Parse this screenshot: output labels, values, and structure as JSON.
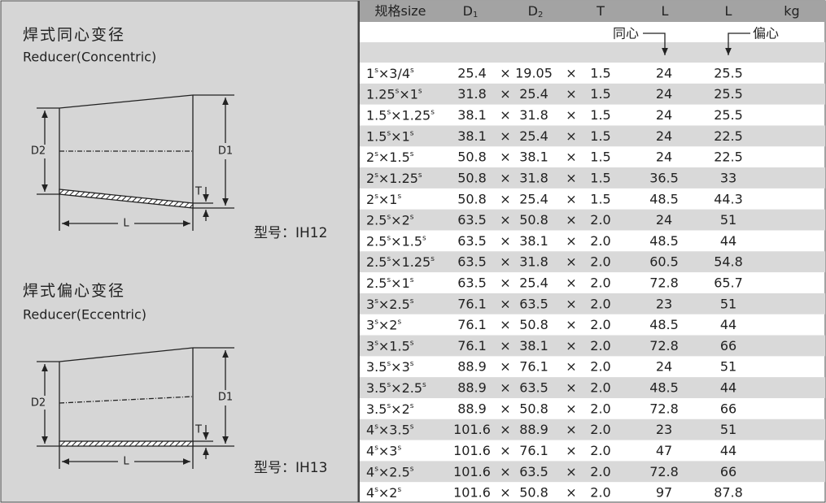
{
  "left": {
    "concentric": {
      "title_cn": "焊式同心变径",
      "title_en": "Reducer(Concentric)",
      "d2": "D2",
      "d1": "D1",
      "t": "T",
      "l": "L",
      "model": "型号：IH12"
    },
    "eccentric": {
      "title_cn": "焊式偏心变径",
      "title_en": "Reducer(Eccentric)",
      "d2": "D2",
      "d1": "D1",
      "t": "T",
      "l": "L",
      "model": "型号：IH13"
    }
  },
  "table": {
    "header": [
      {
        "text": "规格size"
      },
      {
        "text": "D",
        "sub": "1"
      },
      {
        "text": "D",
        "sub": "2"
      },
      {
        "text": "T"
      },
      {
        "text": "L"
      },
      {
        "text": "L"
      },
      {
        "text": "kg"
      }
    ],
    "subheader": {
      "concentric": "同心",
      "eccentric": "偏心"
    },
    "rows": [
      [
        "1s×3/4s",
        "25.4",
        "×",
        "19.05",
        "×",
        "1.5",
        "24",
        "25.5"
      ],
      [
        "1.25s×1s",
        "31.8",
        "×",
        "25.4",
        "×",
        "1.5",
        "24",
        "25.5"
      ],
      [
        "1.5s×1.25s",
        "38.1",
        "×",
        "31.8",
        "×",
        "1.5",
        "24",
        "25.5"
      ],
      [
        "1.5s×1s",
        "38.1",
        "×",
        "25.4",
        "×",
        "1.5",
        "24",
        "22.5"
      ],
      [
        "2s×1.5s",
        "50.8",
        "×",
        "38.1",
        "×",
        "1.5",
        "24",
        "22.5"
      ],
      [
        "2s×1.25s",
        "50.8",
        "×",
        "31.8",
        "×",
        "1.5",
        "36.5",
        "33"
      ],
      [
        "2s×1s",
        "50.8",
        "×",
        "25.4",
        "×",
        "1.5",
        "48.5",
        "44.3"
      ],
      [
        "2.5s×2s",
        "63.5",
        "×",
        "50.8",
        "×",
        "2.0",
        "24",
        "51"
      ],
      [
        "2.5s×1.5s",
        "63.5",
        "×",
        "38.1",
        "×",
        "2.0",
        "48.5",
        "44"
      ],
      [
        "2.5s×1.25s",
        "63.5",
        "×",
        "31.8",
        "×",
        "2.0",
        "60.5",
        "54.8"
      ],
      [
        "2.5s×1s",
        "63.5",
        "×",
        "25.4",
        "×",
        "2.0",
        "72.8",
        "65.7"
      ],
      [
        "3s×2.5s",
        "76.1",
        "×",
        "63.5",
        "×",
        "2.0",
        "23",
        "51"
      ],
      [
        "3s×2s",
        "76.1",
        "×",
        "50.8",
        "×",
        "2.0",
        "48.5",
        "44"
      ],
      [
        "3s×1.5s",
        "76.1",
        "×",
        "38.1",
        "×",
        "2.0",
        "72.8",
        "66"
      ],
      [
        "3.5s×3s",
        "88.9",
        "×",
        "76.1",
        "×",
        "2.0",
        "24",
        "51"
      ],
      [
        "3.5s×2.5s",
        "88.9",
        "×",
        "63.5",
        "×",
        "2.0",
        "48.5",
        "44"
      ],
      [
        "3.5s×2s",
        "88.9",
        "×",
        "50.8",
        "×",
        "2.0",
        "72.8",
        "66"
      ],
      [
        "4s×3.5s",
        "101.6",
        "×",
        "88.9",
        "×",
        "2.0",
        "23",
        "51"
      ],
      [
        "4s×3s",
        "101.6",
        "×",
        "76.1",
        "×",
        "2.0",
        "47",
        "44"
      ],
      [
        "4s×2.5s",
        "101.6",
        "×",
        "63.5",
        "×",
        "2.0",
        "72.8",
        "66"
      ],
      [
        "4s×2s",
        "101.6",
        "×",
        "50.8",
        "×",
        "2.0",
        "97",
        "87.8"
      ]
    ]
  }
}
